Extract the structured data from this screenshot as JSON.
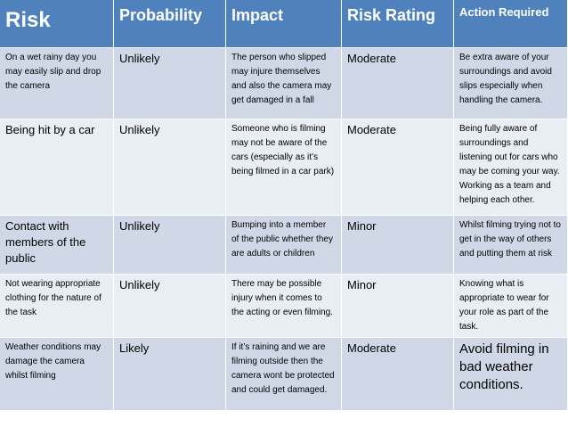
{
  "headers": {
    "risk": "Risk",
    "probability": "Probability",
    "impact": "Impact",
    "risk_rating": "Risk Rating",
    "action_required": "Action Required"
  },
  "rows": [
    {
      "risk": "On a wet rainy day you may easily slip and drop the camera",
      "probability": "Unlikely",
      "impact": "The person who slipped may injure themselves and also the camera may get damaged in a fall",
      "risk_rating": "Moderate",
      "action": "Be extra aware of your surroundings and avoid slips especially when handling the camera."
    },
    {
      "risk": "Being hit by a car",
      "probability": "Unlikely",
      "impact": "Someone who is filming may not be aware of the cars (especially as it’s being filmed in a car park)",
      "risk_rating": "Moderate",
      "action": "Being fully aware of surroundings and listening out for cars who may be coming your way. Working as a team and helping each other."
    },
    {
      "risk": "Contact with members of the public",
      "probability": "Unlikely",
      "impact": "Bumping into a member of the public whether they are adults or children",
      "risk_rating": "Minor",
      "action": "Whilst filming trying not to get in the way of others and putting them at risk"
    },
    {
      "risk": "Not wearing appropriate clothing for the nature of the task",
      "probability": "Unlikely",
      "impact": "There may be possible injury when it comes to the acting or even filming.",
      "risk_rating": "Minor",
      "action": "Knowing what is appropriate to wear for your role as part of the task."
    },
    {
      "risk": "Weather conditions may damage the camera whilst filming",
      "probability": "Likely",
      "impact": "If it’s raining and we are filming outside then the camera wont be protected and could get damaged.",
      "risk_rating": "Moderate",
      "action": "Avoid filming in bad weather conditions."
    }
  ]
}
